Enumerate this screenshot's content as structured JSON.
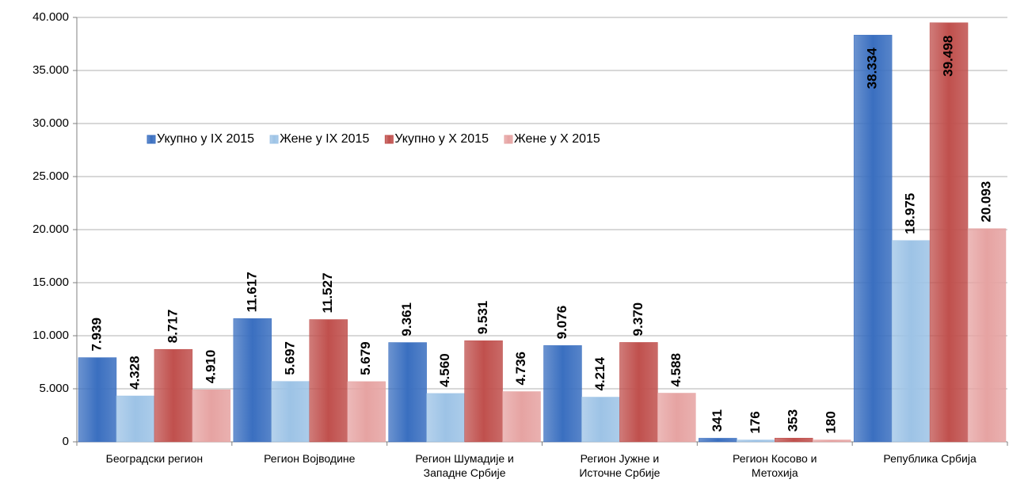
{
  "chart_data": {
    "type": "bar",
    "categories": [
      "Београдски регион",
      "Регион Војводине",
      "Регион Шумадије и\nЗападне Србије",
      "Регион Јужне и\nИсточне Србије",
      "Регион Косово и\nМетохија",
      "Република Србија"
    ],
    "series": [
      {
        "name": "Укупно у IX 2015",
        "color": "#3a6fc0",
        "values": [
          7939,
          11617,
          9361,
          9076,
          341,
          38334
        ],
        "value_labels": [
          "7.939",
          "11.617",
          "9.361",
          "9.076",
          "341",
          "38.334"
        ]
      },
      {
        "name": "Жене у IX 2015",
        "color": "#9dc3e6",
        "values": [
          4328,
          5697,
          4560,
          4214,
          176,
          18975
        ],
        "value_labels": [
          "4.328",
          "5.697",
          "4.560",
          "4.214",
          "176",
          "18.975"
        ]
      },
      {
        "name": "Укупно у X 2015",
        "color": "#c0504d",
        "values": [
          8717,
          11527,
          9531,
          9370,
          353,
          39498
        ],
        "value_labels": [
          "8.717",
          "11.527",
          "9.531",
          "9.370",
          "353",
          "39.498"
        ]
      },
      {
        "name": "Жене у X 2015",
        "color": "#e6a3a2",
        "values": [
          4910,
          5679,
          4736,
          4588,
          180,
          20093
        ],
        "value_labels": [
          "4.910",
          "5.679",
          "4.736",
          "4.588",
          "180",
          "20.093"
        ]
      }
    ],
    "ylim": [
      0,
      40000
    ],
    "yticks": [
      0,
      {
        "value": 5000,
        "label": "5.000"
      },
      {
        "value": 10000,
        "label": "10.000"
      },
      {
        "value": 15000,
        "label": "15.000"
      },
      {
        "value": 20000,
        "label": "20.000"
      },
      {
        "value": 25000,
        "label": "25.000"
      },
      {
        "value": 30000,
        "label": "30.000"
      },
      {
        "value": 35000,
        "label": "35.000"
      },
      {
        "value": 40000,
        "label": "40.000"
      }
    ],
    "grid": true
  }
}
